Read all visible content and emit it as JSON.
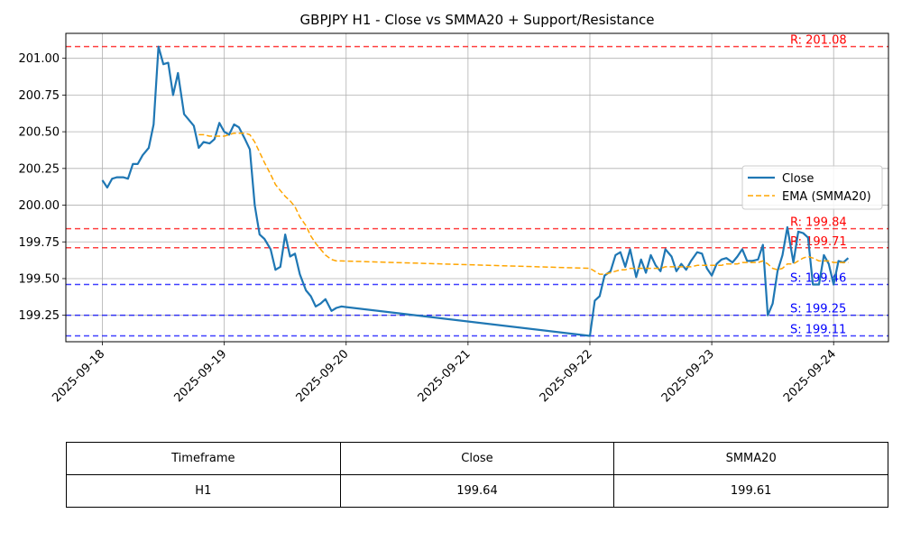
{
  "chart_data": {
    "type": "line",
    "title": "GBPJPY H1 - Close vs SMMA20 + Support/Resistance",
    "xlabel": "",
    "ylabel": "",
    "x_range": [
      -0.3,
      6.45
    ],
    "ylim": [
      199.07,
      201.17
    ],
    "grid": true,
    "legend_position": "center-right",
    "x_ticks": [
      {
        "label": "2025-09-18",
        "value": 0
      },
      {
        "label": "2025-09-19",
        "value": 1
      },
      {
        "label": "2025-09-20",
        "value": 2
      },
      {
        "label": "2025-09-21",
        "value": 3
      },
      {
        "label": "2025-09-22",
        "value": 4
      },
      {
        "label": "2025-09-23",
        "value": 5
      },
      {
        "label": "2025-09-24",
        "value": 6
      }
    ],
    "y_ticks": [
      "199.25",
      "199.50",
      "199.75",
      "200.00",
      "200.25",
      "200.50",
      "200.75",
      "201.00"
    ],
    "series": [
      {
        "name": "Close",
        "color": "#1f77b4",
        "style": "solid",
        "points": [
          [
            0.0,
            200.17
          ],
          [
            0.04,
            200.12
          ],
          [
            0.08,
            200.18
          ],
          [
            0.12,
            200.19
          ],
          [
            0.17,
            200.19
          ],
          [
            0.21,
            200.18
          ],
          [
            0.25,
            200.28
          ],
          [
            0.29,
            200.28
          ],
          [
            0.33,
            200.34
          ],
          [
            0.38,
            200.39
          ],
          [
            0.42,
            200.55
          ],
          [
            0.46,
            201.08
          ],
          [
            0.5,
            200.96
          ],
          [
            0.54,
            200.97
          ],
          [
            0.58,
            200.75
          ],
          [
            0.62,
            200.9
          ],
          [
            0.67,
            200.62
          ],
          [
            0.71,
            200.58
          ],
          [
            0.75,
            200.54
          ],
          [
            0.79,
            200.39
          ],
          [
            0.83,
            200.43
          ],
          [
            0.88,
            200.42
          ],
          [
            0.92,
            200.45
          ],
          [
            0.96,
            200.56
          ],
          [
            1.0,
            200.5
          ],
          [
            1.04,
            200.48
          ],
          [
            1.08,
            200.55
          ],
          [
            1.12,
            200.53
          ],
          [
            1.17,
            200.45
          ],
          [
            1.21,
            200.38
          ],
          [
            1.25,
            200.0
          ],
          [
            1.29,
            199.8
          ],
          [
            1.33,
            199.77
          ],
          [
            1.38,
            199.7
          ],
          [
            1.42,
            199.56
          ],
          [
            1.46,
            199.58
          ],
          [
            1.5,
            199.8
          ],
          [
            1.54,
            199.65
          ],
          [
            1.58,
            199.67
          ],
          [
            1.62,
            199.53
          ],
          [
            1.67,
            199.42
          ],
          [
            1.71,
            199.38
          ],
          [
            1.75,
            199.31
          ],
          [
            1.79,
            199.33
          ],
          [
            1.83,
            199.36
          ],
          [
            1.88,
            199.28
          ],
          [
            1.92,
            199.3
          ],
          [
            1.96,
            199.31
          ],
          [
            4.0,
            199.11
          ],
          [
            4.04,
            199.35
          ],
          [
            4.08,
            199.38
          ],
          [
            4.12,
            199.52
          ],
          [
            4.17,
            199.55
          ],
          [
            4.21,
            199.66
          ],
          [
            4.25,
            199.68
          ],
          [
            4.29,
            199.58
          ],
          [
            4.33,
            199.7
          ],
          [
            4.38,
            199.51
          ],
          [
            4.42,
            199.63
          ],
          [
            4.46,
            199.54
          ],
          [
            4.5,
            199.66
          ],
          [
            4.54,
            199.59
          ],
          [
            4.58,
            199.55
          ],
          [
            4.62,
            199.7
          ],
          [
            4.67,
            199.65
          ],
          [
            4.71,
            199.55
          ],
          [
            4.75,
            199.6
          ],
          [
            4.79,
            199.56
          ],
          [
            4.83,
            199.62
          ],
          [
            4.88,
            199.68
          ],
          [
            4.92,
            199.67
          ],
          [
            4.96,
            199.57
          ],
          [
            5.0,
            199.52
          ],
          [
            5.04,
            199.6
          ],
          [
            5.08,
            199.63
          ],
          [
            5.12,
            199.64
          ],
          [
            5.17,
            199.61
          ],
          [
            5.21,
            199.65
          ],
          [
            5.25,
            199.7
          ],
          [
            5.29,
            199.62
          ],
          [
            5.33,
            199.62
          ],
          [
            5.38,
            199.63
          ],
          [
            5.42,
            199.73
          ],
          [
            5.46,
            199.25
          ],
          [
            5.5,
            199.33
          ],
          [
            5.54,
            199.55
          ],
          [
            5.58,
            199.66
          ],
          [
            5.62,
            199.85
          ],
          [
            5.67,
            199.61
          ],
          [
            5.71,
            199.82
          ],
          [
            5.75,
            199.81
          ],
          [
            5.79,
            199.78
          ],
          [
            5.83,
            199.46
          ],
          [
            5.88,
            199.46
          ],
          [
            5.92,
            199.66
          ],
          [
            5.96,
            199.6
          ],
          [
            6.0,
            199.46
          ],
          [
            6.04,
            199.62
          ],
          [
            6.08,
            199.61
          ],
          [
            6.12,
            199.64
          ]
        ]
      },
      {
        "name": "EMA (SMMA20)",
        "color": "#ffa500",
        "style": "dashed",
        "points": [
          [
            0.79,
            200.48
          ],
          [
            0.83,
            200.48
          ],
          [
            0.88,
            200.47
          ],
          [
            0.92,
            200.47
          ],
          [
            0.96,
            200.47
          ],
          [
            1.0,
            200.47
          ],
          [
            1.04,
            200.48
          ],
          [
            1.08,
            200.49
          ],
          [
            1.12,
            200.49
          ],
          [
            1.17,
            200.49
          ],
          [
            1.21,
            200.48
          ],
          [
            1.25,
            200.43
          ],
          [
            1.29,
            200.36
          ],
          [
            1.33,
            200.29
          ],
          [
            1.38,
            200.21
          ],
          [
            1.42,
            200.14
          ],
          [
            1.46,
            200.1
          ],
          [
            1.5,
            200.06
          ],
          [
            1.54,
            200.03
          ],
          [
            1.58,
            199.99
          ],
          [
            1.62,
            199.92
          ],
          [
            1.67,
            199.86
          ],
          [
            1.71,
            199.79
          ],
          [
            1.75,
            199.74
          ],
          [
            1.79,
            199.7
          ],
          [
            1.83,
            199.66
          ],
          [
            1.88,
            199.63
          ],
          [
            1.92,
            199.62
          ],
          [
            1.96,
            199.62
          ],
          [
            4.0,
            199.57
          ],
          [
            4.04,
            199.55
          ],
          [
            4.08,
            199.53
          ],
          [
            4.12,
            199.53
          ],
          [
            4.17,
            199.54
          ],
          [
            4.21,
            199.55
          ],
          [
            4.25,
            199.56
          ],
          [
            4.29,
            199.56
          ],
          [
            4.33,
            199.57
          ],
          [
            4.38,
            199.57
          ],
          [
            4.42,
            199.57
          ],
          [
            4.46,
            199.57
          ],
          [
            4.5,
            199.57
          ],
          [
            4.54,
            199.57
          ],
          [
            4.58,
            199.57
          ],
          [
            4.62,
            199.58
          ],
          [
            4.67,
            199.58
          ],
          [
            4.71,
            199.58
          ],
          [
            4.75,
            199.58
          ],
          [
            4.79,
            199.58
          ],
          [
            4.83,
            199.58
          ],
          [
            4.88,
            199.59
          ],
          [
            4.92,
            199.59
          ],
          [
            4.96,
            199.59
          ],
          [
            5.0,
            199.59
          ],
          [
            5.04,
            199.59
          ],
          [
            5.08,
            199.59
          ],
          [
            5.12,
            199.6
          ],
          [
            5.17,
            199.6
          ],
          [
            5.21,
            199.6
          ],
          [
            5.25,
            199.61
          ],
          [
            5.29,
            199.61
          ],
          [
            5.33,
            199.61
          ],
          [
            5.38,
            199.61
          ],
          [
            5.42,
            199.62
          ],
          [
            5.46,
            199.6
          ],
          [
            5.5,
            199.57
          ],
          [
            5.54,
            199.56
          ],
          [
            5.58,
            199.57
          ],
          [
            5.62,
            199.6
          ],
          [
            5.67,
            199.6
          ],
          [
            5.71,
            199.62
          ],
          [
            5.75,
            199.64
          ],
          [
            5.79,
            199.65
          ],
          [
            5.83,
            199.64
          ],
          [
            5.88,
            199.62
          ],
          [
            5.92,
            199.62
          ],
          [
            5.96,
            199.62
          ],
          [
            6.0,
            199.61
          ],
          [
            6.04,
            199.61
          ],
          [
            6.08,
            199.61
          ],
          [
            6.12,
            199.61
          ]
        ]
      }
    ],
    "resistance": [
      {
        "value": 201.08,
        "label": "R: 201.08"
      },
      {
        "value": 199.84,
        "label": "R: 199.84"
      },
      {
        "value": 199.71,
        "label": "R: 199.71"
      }
    ],
    "support": [
      {
        "value": 199.46,
        "label": "S: 199.46"
      },
      {
        "value": 199.25,
        "label": "S: 199.25"
      },
      {
        "value": 199.11,
        "label": "S: 199.11"
      }
    ],
    "resistance_color": "#ff0000",
    "support_color": "#0000ff"
  },
  "table": {
    "headers": [
      "Timeframe",
      "Close",
      "SMMA20"
    ],
    "row": [
      "H1",
      "199.64",
      "199.61"
    ]
  }
}
